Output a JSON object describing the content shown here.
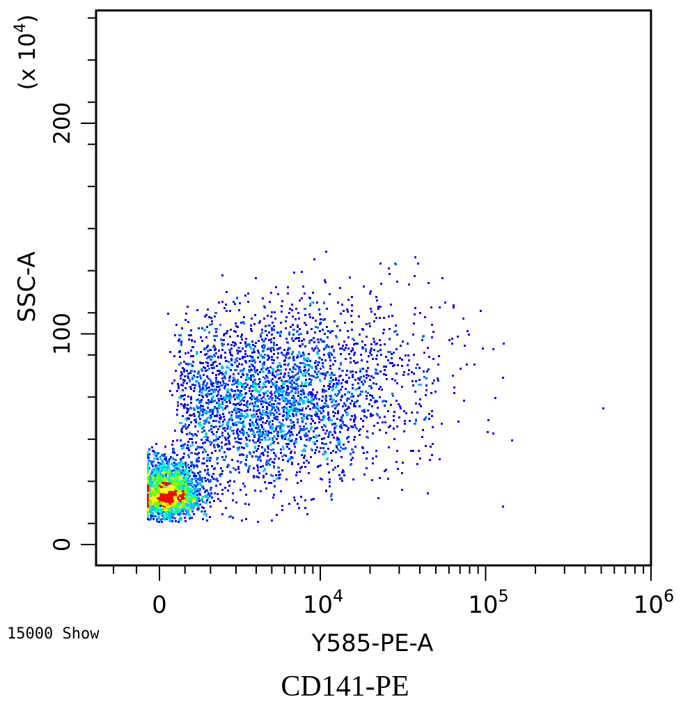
{
  "chart_data": {
    "type": "scatter",
    "subtype": "flow-cytometry density dot plot (pseudocolor)",
    "xlabel": "Y585-PE-A",
    "ylabel": "SSC-A",
    "y_multiplier_label": "(x 10",
    "y_multiplier_exp": "4",
    "x_scale": "biexponential (linear near 0, log above ~10^3.5)",
    "xlim": [
      -2000,
      1000000
    ],
    "ylim": [
      -10,
      255
    ],
    "x_ticks": [
      {
        "value": 0,
        "base": "0",
        "exp": ""
      },
      {
        "value": 10000,
        "base": "10",
        "exp": "4"
      },
      {
        "value": 100000,
        "base": "10",
        "exp": "5"
      },
      {
        "value": 1000000,
        "base": "10",
        "exp": "6"
      }
    ],
    "y_ticks": [
      "0",
      "100",
      "200"
    ],
    "y_tick_values": [
      0,
      100,
      200
    ],
    "events_label": "15000 Show",
    "caption": "CD141-PE",
    "grid": false,
    "legend": "none",
    "color_scale": [
      "#0000ff",
      "#0064ff",
      "#00c8ff",
      "#00ffb4",
      "#78ff00",
      "#ffff00",
      "#ff0000"
    ],
    "populations": [
      {
        "x_center": 300,
        "y_center": 24,
        "x_spread": 600,
        "y_spread": 8,
        "count": 2600,
        "note": "dense low-SSC population near 0"
      },
      {
        "x_center": 4500,
        "y_center": 68,
        "x_spread": 0.35,
        "y_spread": 20,
        "count": 2600,
        "note": "main scatter cloud"
      },
      {
        "x_center": 16000,
        "y_center": 85,
        "x_spread": 0.35,
        "y_spread": 22,
        "count": 500,
        "note": "upper-right sparse tail"
      }
    ]
  }
}
